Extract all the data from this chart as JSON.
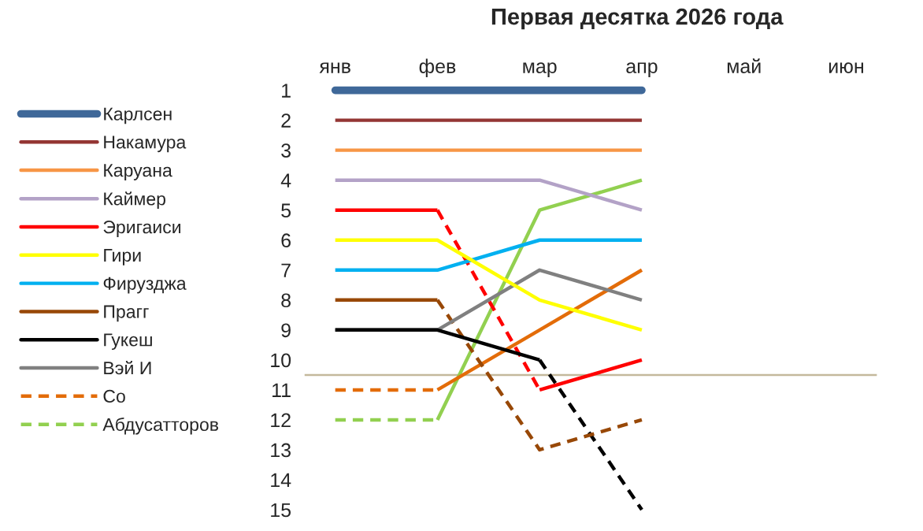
{
  "chart_data": {
    "type": "line",
    "title": "Первая десятка 2026 года",
    "categories": [
      "янв",
      "фев",
      "мар",
      "апр",
      "май",
      "июн"
    ],
    "ylim": [
      15,
      1
    ],
    "yticks": [
      1,
      2,
      3,
      4,
      5,
      6,
      7,
      8,
      9,
      10,
      11,
      12,
      13,
      14,
      15
    ],
    "grid": false,
    "legend": "left",
    "marker": "none",
    "ref_lines": [
      {
        "axis": "y",
        "value": 10.5,
        "color": "#c4b89c"
      }
    ],
    "series": [
      {
        "name": "Карлсен",
        "color": "#3f6899",
        "line_style": "solid",
        "values": [
          1,
          1,
          1,
          1,
          null,
          null
        ]
      },
      {
        "name": "Накамура",
        "color": "#943634",
        "line_style": "solid",
        "values": [
          2,
          2,
          2,
          2,
          null,
          null
        ]
      },
      {
        "name": "Каруана",
        "color": "#f79646",
        "line_style": "solid",
        "values": [
          3,
          3,
          3,
          3,
          null,
          null
        ]
      },
      {
        "name": "Каймер",
        "color": "#b3a2c7",
        "line_style": "solid",
        "values": [
          4,
          4,
          4,
          5,
          null,
          null
        ]
      },
      {
        "name": "Эригаиси",
        "color": "#ff0000",
        "line_style": "solid",
        "values": [
          5,
          5,
          null,
          null,
          null,
          null
        ]
      },
      {
        "name": "Гири",
        "color": "#ffff00",
        "line_style": "solid",
        "values": [
          6,
          6,
          8,
          9,
          null,
          null
        ]
      },
      {
        "name": "Фирузджа",
        "color": "#00b0f0",
        "line_style": "solid",
        "values": [
          7,
          7,
          6,
          6,
          null,
          null
        ]
      },
      {
        "name": "Прагг",
        "color": "#984807",
        "line_style": "solid",
        "values": [
          8,
          8,
          null,
          null,
          null,
          null
        ]
      },
      {
        "name": "Гукеш",
        "color": "#000000",
        "line_style": "solid",
        "values": [
          9,
          9,
          10,
          null,
          null,
          null
        ]
      },
      {
        "name": "Вэй И",
        "color": "#808080",
        "line_style": "solid",
        "values": [
          9,
          9,
          7,
          8,
          null,
          null
        ]
      },
      {
        "name": "Со",
        "color": "#e36c09",
        "line_style": "dashed",
        "values": [
          11,
          11,
          null,
          null,
          null,
          null
        ]
      },
      {
        "name": "Абдусатторов",
        "color": "#92d050",
        "line_style": "dashed",
        "values": [
          12,
          12,
          null,
          null,
          null,
          null
        ]
      },
      {
        "color": "#ff0000",
        "line_style": "dashed",
        "values": [
          null,
          5,
          11,
          null,
          null,
          null
        ]
      },
      {
        "color": "#ff0000",
        "line_style": "solid",
        "values": [
          null,
          null,
          11,
          10,
          null,
          null
        ]
      },
      {
        "color": "#984807",
        "line_style": "dashed",
        "values": [
          null,
          8,
          13,
          12,
          null,
          null
        ]
      },
      {
        "color": "#000000",
        "line_style": "dashed",
        "values": [
          null,
          null,
          10,
          15,
          null,
          null
        ]
      },
      {
        "color": "#e36c09",
        "line_style": "solid",
        "values": [
          null,
          11,
          9,
          7,
          null,
          null
        ]
      },
      {
        "color": "#92d050",
        "line_style": "solid",
        "values": [
          null,
          12,
          5,
          4,
          null,
          null
        ]
      }
    ]
  }
}
